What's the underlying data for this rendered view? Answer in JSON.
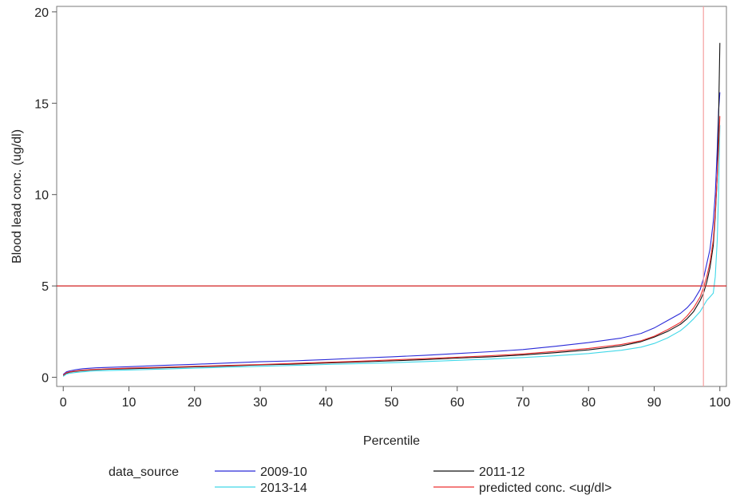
{
  "chart_data": {
    "type": "line",
    "title": "",
    "xlabel": "Percentile",
    "ylabel": "Blood lead conc. (ug/dl)",
    "xlim": [
      -1,
      101
    ],
    "ylim": [
      -0.5,
      20.3
    ],
    "x_ticks": [
      0,
      10,
      20,
      30,
      40,
      50,
      60,
      70,
      80,
      90,
      100
    ],
    "y_ticks": [
      0,
      5,
      10,
      15,
      20
    ],
    "grid": false,
    "legend": {
      "title": "data_source",
      "position": "bottom"
    },
    "reference_lines": [
      {
        "axis": "y",
        "value": 5,
        "color": "#d22020"
      },
      {
        "axis": "x",
        "value": 97.5,
        "color": "#f5a0a0"
      }
    ],
    "series": [
      {
        "name": "2009-10",
        "color": "#2a2ad8",
        "points": [
          [
            0,
            0.15
          ],
          [
            0.5,
            0.3
          ],
          [
            1,
            0.35
          ],
          [
            2,
            0.42
          ],
          [
            3,
            0.47
          ],
          [
            5,
            0.52
          ],
          [
            10,
            0.58
          ],
          [
            15,
            0.65
          ],
          [
            20,
            0.71
          ],
          [
            25,
            0.78
          ],
          [
            30,
            0.85
          ],
          [
            35,
            0.9
          ],
          [
            40,
            0.97
          ],
          [
            45,
            1.05
          ],
          [
            50,
            1.12
          ],
          [
            55,
            1.2
          ],
          [
            60,
            1.3
          ],
          [
            65,
            1.4
          ],
          [
            70,
            1.52
          ],
          [
            75,
            1.7
          ],
          [
            80,
            1.9
          ],
          [
            85,
            2.15
          ],
          [
            88,
            2.4
          ],
          [
            90,
            2.7
          ],
          [
            92,
            3.1
          ],
          [
            94,
            3.5
          ],
          [
            95,
            3.8
          ],
          [
            96,
            4.2
          ],
          [
            97,
            4.8
          ],
          [
            97.5,
            5.4
          ],
          [
            98,
            6.2
          ],
          [
            98.5,
            7.0
          ],
          [
            99,
            8.5
          ],
          [
            99.3,
            10.0
          ],
          [
            99.6,
            12.5
          ],
          [
            99.8,
            14.5
          ],
          [
            100,
            15.6
          ]
        ]
      },
      {
        "name": "2011-12",
        "color": "#111111",
        "points": [
          [
            0,
            0.1
          ],
          [
            0.5,
            0.22
          ],
          [
            1,
            0.28
          ],
          [
            2,
            0.33
          ],
          [
            3,
            0.37
          ],
          [
            5,
            0.42
          ],
          [
            10,
            0.47
          ],
          [
            15,
            0.52
          ],
          [
            20,
            0.57
          ],
          [
            25,
            0.62
          ],
          [
            30,
            0.68
          ],
          [
            35,
            0.72
          ],
          [
            40,
            0.78
          ],
          [
            45,
            0.84
          ],
          [
            50,
            0.9
          ],
          [
            55,
            0.97
          ],
          [
            60,
            1.05
          ],
          [
            65,
            1.12
          ],
          [
            70,
            1.22
          ],
          [
            75,
            1.35
          ],
          [
            80,
            1.5
          ],
          [
            85,
            1.72
          ],
          [
            88,
            1.95
          ],
          [
            90,
            2.2
          ],
          [
            92,
            2.5
          ],
          [
            94,
            2.9
          ],
          [
            95,
            3.2
          ],
          [
            96,
            3.6
          ],
          [
            97,
            4.2
          ],
          [
            97.5,
            4.6
          ],
          [
            98,
            5.2
          ],
          [
            98.5,
            6.0
          ],
          [
            99,
            7.2
          ],
          [
            99.3,
            8.8
          ],
          [
            99.6,
            11.0
          ],
          [
            99.8,
            14.0
          ],
          [
            100,
            18.3
          ]
        ]
      },
      {
        "name": "2013-14",
        "color": "#40d8e8",
        "points": [
          [
            0,
            0.05
          ],
          [
            0.5,
            0.18
          ],
          [
            1,
            0.22
          ],
          [
            2,
            0.27
          ],
          [
            3,
            0.3
          ],
          [
            5,
            0.35
          ],
          [
            10,
            0.4
          ],
          [
            15,
            0.45
          ],
          [
            20,
            0.5
          ],
          [
            25,
            0.55
          ],
          [
            30,
            0.6
          ],
          [
            35,
            0.65
          ],
          [
            40,
            0.7
          ],
          [
            45,
            0.75
          ],
          [
            50,
            0.8
          ],
          [
            55,
            0.86
          ],
          [
            60,
            0.93
          ],
          [
            65,
            1.0
          ],
          [
            70,
            1.08
          ],
          [
            75,
            1.18
          ],
          [
            80,
            1.3
          ],
          [
            85,
            1.48
          ],
          [
            88,
            1.65
          ],
          [
            90,
            1.85
          ],
          [
            92,
            2.15
          ],
          [
            94,
            2.55
          ],
          [
            95,
            2.85
          ],
          [
            96,
            3.2
          ],
          [
            97,
            3.6
          ],
          [
            97.5,
            3.9
          ],
          [
            98,
            4.2
          ],
          [
            98.5,
            4.4
          ],
          [
            99,
            4.6
          ],
          [
            99.3,
            5.5
          ],
          [
            99.6,
            7.5
          ],
          [
            99.8,
            10.0
          ],
          [
            100,
            13.8
          ]
        ]
      },
      {
        "name": "predicted conc. <ug/dl>",
        "color": "#ee3030",
        "points": [
          [
            0,
            0.12
          ],
          [
            0.5,
            0.25
          ],
          [
            1,
            0.3
          ],
          [
            2,
            0.35
          ],
          [
            3,
            0.39
          ],
          [
            5,
            0.44
          ],
          [
            10,
            0.5
          ],
          [
            15,
            0.55
          ],
          [
            20,
            0.6
          ],
          [
            25,
            0.65
          ],
          [
            30,
            0.7
          ],
          [
            35,
            0.76
          ],
          [
            40,
            0.82
          ],
          [
            45,
            0.88
          ],
          [
            50,
            0.95
          ],
          [
            55,
            1.02
          ],
          [
            60,
            1.1
          ],
          [
            65,
            1.18
          ],
          [
            70,
            1.28
          ],
          [
            75,
            1.42
          ],
          [
            80,
            1.58
          ],
          [
            85,
            1.8
          ],
          [
            88,
            2.0
          ],
          [
            90,
            2.25
          ],
          [
            92,
            2.6
          ],
          [
            94,
            3.0
          ],
          [
            95,
            3.35
          ],
          [
            96,
            3.8
          ],
          [
            97,
            4.4
          ],
          [
            97.5,
            4.9
          ],
          [
            98,
            5.5
          ],
          [
            98.5,
            6.3
          ],
          [
            99,
            7.5
          ],
          [
            99.3,
            9.0
          ],
          [
            99.6,
            11.0
          ],
          [
            99.8,
            12.5
          ],
          [
            100,
            14.3
          ]
        ]
      }
    ]
  }
}
